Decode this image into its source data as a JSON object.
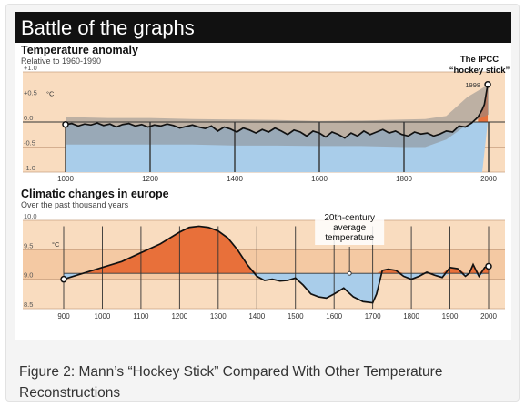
{
  "figure_title": "Battle of the graphs",
  "caption": "Figure 2: Mann’s “Hockey Stick” Compared With Other Temperature Reconstructions",
  "colors": {
    "warm": "#e8703a",
    "cool": "#a9cdea",
    "band_light": "#f9dcbf",
    "band_dark": "#f4c9a3",
    "uncertainty": "#8c8c8c",
    "header": "#111111"
  },
  "chart_data": [
    {
      "type": "line",
      "title": "Temperature anomaly",
      "subtitle": "Relative to 1960-1990",
      "unit": "°C",
      "ylim": [
        -1.0,
        1.0
      ],
      "yticks": [
        "+1.0",
        "+0.5",
        "0.0",
        "-0.5",
        "-1.0"
      ],
      "xlim": [
        1000,
        2000
      ],
      "xticks": [
        "1000",
        "1200",
        "1400",
        "1600",
        "1800",
        "2000"
      ],
      "annotation": "The IPCC\n“hockey stick”",
      "marker_label": "1998",
      "series": [
        {
          "x": [
            1000,
            1015,
            1030,
            1045,
            1060,
            1075,
            1090,
            1105,
            1120,
            1135,
            1150,
            1165,
            1180,
            1195,
            1210,
            1225,
            1240,
            1255,
            1270,
            1285,
            1300,
            1315,
            1330,
            1345,
            1360,
            1375,
            1390,
            1405,
            1420,
            1435,
            1450,
            1465,
            1480,
            1495,
            1510,
            1525,
            1540,
            1555,
            1570,
            1585,
            1600,
            1615,
            1630,
            1645,
            1660,
            1675,
            1690,
            1705,
            1720,
            1735,
            1750,
            1765,
            1780,
            1795,
            1810,
            1825,
            1840,
            1855,
            1870,
            1885,
            1900,
            1915,
            1930,
            1945,
            1960,
            1975,
            1985,
            1990,
            1998
          ],
          "y": [
            -0.05,
            -0.03,
            -0.08,
            -0.04,
            -0.06,
            -0.02,
            -0.07,
            -0.04,
            -0.1,
            -0.05,
            -0.03,
            -0.08,
            -0.05,
            -0.1,
            -0.06,
            -0.08,
            -0.04,
            -0.07,
            -0.12,
            -0.09,
            -0.06,
            -0.1,
            -0.13,
            -0.08,
            -0.18,
            -0.1,
            -0.14,
            -0.2,
            -0.12,
            -0.16,
            -0.22,
            -0.15,
            -0.2,
            -0.12,
            -0.18,
            -0.25,
            -0.16,
            -0.2,
            -0.28,
            -0.18,
            -0.22,
            -0.3,
            -0.2,
            -0.25,
            -0.32,
            -0.22,
            -0.28,
            -0.18,
            -0.25,
            -0.2,
            -0.15,
            -0.22,
            -0.18,
            -0.25,
            -0.28,
            -0.2,
            -0.24,
            -0.22,
            -0.28,
            -0.24,
            -0.18,
            -0.2,
            -0.08,
            -0.1,
            -0.02,
            0.1,
            0.25,
            0.35,
            0.75
          ]
        }
      ],
      "uncertainty_band": {
        "x": [
          1000,
          1100,
          1200,
          1300,
          1400,
          1500,
          1600,
          1700,
          1800,
          1850,
          1900,
          1950,
          2000
        ],
        "upper": [
          0.1,
          0.08,
          0.08,
          0.06,
          0.05,
          0.04,
          0.02,
          0.03,
          0.05,
          0.06,
          0.12,
          0.5,
          0.75
        ],
        "lower": [
          -0.45,
          -0.45,
          -0.45,
          -0.45,
          -0.47,
          -0.47,
          -0.48,
          -0.48,
          -0.5,
          -0.5,
          -0.35,
          -0.05,
          0.15
        ]
      }
    },
    {
      "type": "line",
      "title": "Climatic changes in europe",
      "subtitle": "Over the past thousand years",
      "unit": "°C",
      "ylim": [
        8.5,
        10.0
      ],
      "yticks": [
        "10.0",
        "9.5",
        "9.0",
        "8.5"
      ],
      "xlim": [
        900,
        2000
      ],
      "xticks": [
        "900",
        "1000",
        "1100",
        "1200",
        "1300",
        "1400",
        "1500",
        "1600",
        "1700",
        "1800",
        "1900",
        "2000"
      ],
      "baseline": 9.1,
      "annotation": "20th-century\naverage\ntemperature",
      "series": [
        {
          "x": [
            900,
            950,
            1000,
            1050,
            1100,
            1150,
            1200,
            1225,
            1250,
            1275,
            1300,
            1325,
            1350,
            1375,
            1400,
            1420,
            1440,
            1460,
            1480,
            1500,
            1520,
            1540,
            1560,
            1580,
            1600,
            1625,
            1650,
            1675,
            1700,
            1710,
            1725,
            1740,
            1760,
            1780,
            1800,
            1820,
            1840,
            1860,
            1880,
            1900,
            1920,
            1940,
            1950,
            1960,
            1975,
            1990,
            2000
          ],
          "y": [
            9.0,
            9.1,
            9.2,
            9.3,
            9.45,
            9.6,
            9.8,
            9.88,
            9.9,
            9.88,
            9.82,
            9.7,
            9.5,
            9.25,
            9.05,
            8.98,
            9.0,
            8.97,
            8.98,
            9.02,
            8.9,
            8.75,
            8.7,
            8.68,
            8.75,
            8.85,
            8.7,
            8.62,
            8.6,
            8.75,
            9.15,
            9.17,
            9.15,
            9.05,
            9.0,
            9.05,
            9.12,
            9.07,
            9.03,
            9.2,
            9.18,
            9.05,
            9.1,
            9.25,
            9.05,
            9.2,
            9.22
          ]
        }
      ]
    }
  ]
}
